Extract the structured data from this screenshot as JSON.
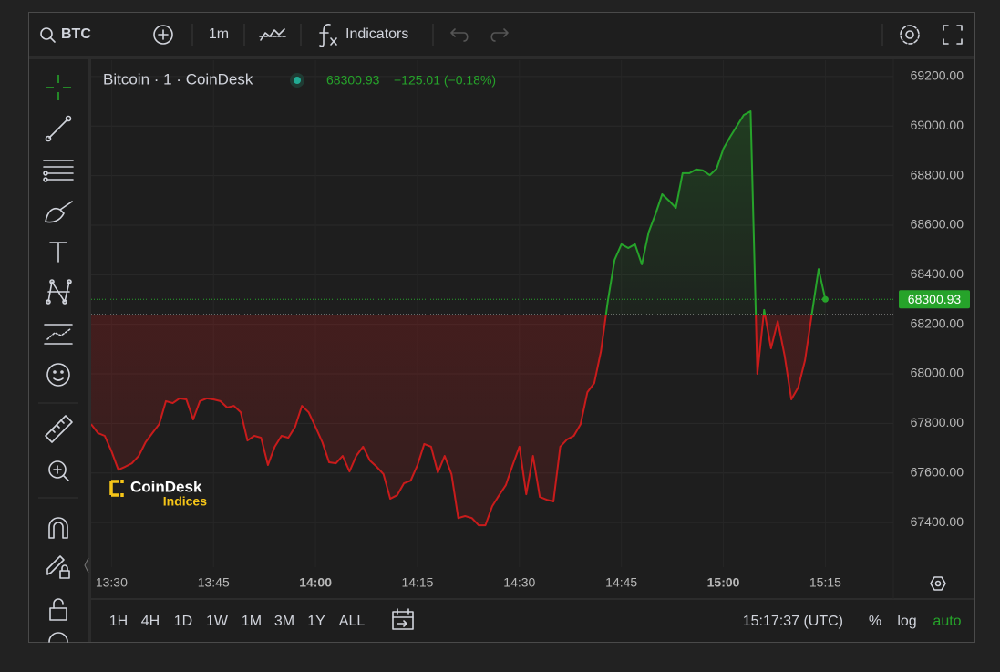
{
  "toolbar": {
    "symbol": "BTC",
    "interval": "1m",
    "indicators": "Indicators"
  },
  "chart_data": {
    "type": "line",
    "title": "Bitcoin · 1 · CoinDesk",
    "change": "−125.01 (−0.18%)",
    "x": [
      "13:27",
      "13:28",
      "13:29",
      "13:30",
      "13:31",
      "13:32",
      "13:33",
      "13:34",
      "13:35",
      "13:36",
      "13:37",
      "13:38",
      "13:39",
      "13:40",
      "13:41",
      "13:42",
      "13:43",
      "13:44",
      "13:45",
      "13:46",
      "13:47",
      "13:48",
      "13:49",
      "13:50",
      "13:51",
      "13:52",
      "13:53",
      "13:54",
      "13:55",
      "13:56",
      "13:57",
      "13:58",
      "13:59",
      "14:00",
      "14:01",
      "14:02",
      "14:03",
      "14:04",
      "14:05",
      "14:06",
      "14:07",
      "14:08",
      "14:09",
      "14:10",
      "14:11",
      "14:12",
      "14:13",
      "14:14",
      "14:15",
      "14:16",
      "14:17",
      "14:18",
      "14:19",
      "14:20",
      "14:21",
      "14:22",
      "14:23",
      "14:24",
      "14:25",
      "14:26",
      "14:27",
      "14:28",
      "14:29",
      "14:30",
      "14:31",
      "14:32",
      "14:33",
      "14:34",
      "14:35",
      "14:36",
      "14:37",
      "14:38",
      "14:39",
      "14:40",
      "14:41",
      "14:42",
      "14:43",
      "14:44",
      "14:45",
      "14:46",
      "14:47",
      "14:48",
      "14:49",
      "14:50",
      "14:51",
      "14:52",
      "14:53",
      "14:54",
      "14:55",
      "14:56",
      "14:57",
      "14:58",
      "14:59",
      "15:00",
      "15:01",
      "15:02",
      "15:03",
      "15:04",
      "15:05",
      "15:06",
      "15:07",
      "15:08",
      "15:09",
      "15:10",
      "15:11",
      "15:12",
      "15:13",
      "15:14",
      "15:15"
    ],
    "values": [
      67797,
      67761,
      67750,
      67687,
      67613,
      67625,
      67639,
      67669,
      67724,
      67761,
      67797,
      67890,
      67882,
      67901,
      67897,
      67816,
      67890,
      67901,
      67897,
      67890,
      67864,
      67871,
      67845,
      67731,
      67750,
      67742,
      67632,
      67706,
      67750,
      67742,
      67786,
      67871,
      67845,
      67786,
      67724,
      67643,
      67639,
      67669,
      67606,
      67669,
      67706,
      67650,
      67625,
      67595,
      67496,
      67510,
      67558,
      67569,
      67632,
      67717,
      67706,
      67602,
      67669,
      67595,
      67418,
      67426,
      67418,
      67389,
      67389,
      67466,
      67510,
      67551,
      67632,
      67706,
      67514,
      67669,
      67503,
      67492,
      67485,
      67706,
      67735,
      67750,
      67797,
      67926,
      67963,
      68092,
      68294,
      68460,
      68523,
      68508,
      68523,
      68442,
      68571,
      68644,
      68725,
      68699,
      68670,
      68810,
      68810,
      68825,
      68821,
      68802,
      68828,
      68909,
      68957,
      69001,
      69045,
      69060,
      68000,
      68258,
      68103,
      68213,
      68074,
      67897,
      67945,
      68055,
      68239,
      68423,
      68300.93
    ],
    "baseline": 68240,
    "up_color": "#26a32a",
    "down_color": "#c91b1b",
    "xlim": [
      "13:27",
      "15:25"
    ],
    "xticks": [
      "13:30",
      "13:45",
      "14:00",
      "14:15",
      "14:30",
      "14:45",
      "15:00",
      "15:15"
    ],
    "ylim": [
      67220,
      69266
    ],
    "yticks": [
      {
        "value": 67400,
        "label": "67400.00"
      },
      {
        "value": 67600,
        "label": "67600.00"
      },
      {
        "value": 67800,
        "label": "67800.00"
      },
      {
        "value": 68000,
        "label": "68000.00"
      },
      {
        "value": 68200,
        "label": "68200.00"
      },
      {
        "value": 68400,
        "label": "68400.00"
      },
      {
        "value": 68600,
        "label": "68600.00"
      },
      {
        "value": 68800,
        "label": "68800.00"
      },
      {
        "value": 69000,
        "label": "69000.00"
      },
      {
        "value": 69200,
        "label": "69200.00"
      }
    ],
    "grid": true
  },
  "watermark": {
    "brand": "CoinDesk",
    "sub": "Indices"
  },
  "bottom_bar": {
    "ranges": [
      "1H",
      "4H",
      "1D",
      "1W",
      "1M",
      "3M",
      "1Y",
      "ALL"
    ],
    "clock": "15:17:37 (UTC)",
    "scale_options": [
      "%",
      "log",
      "auto"
    ]
  }
}
